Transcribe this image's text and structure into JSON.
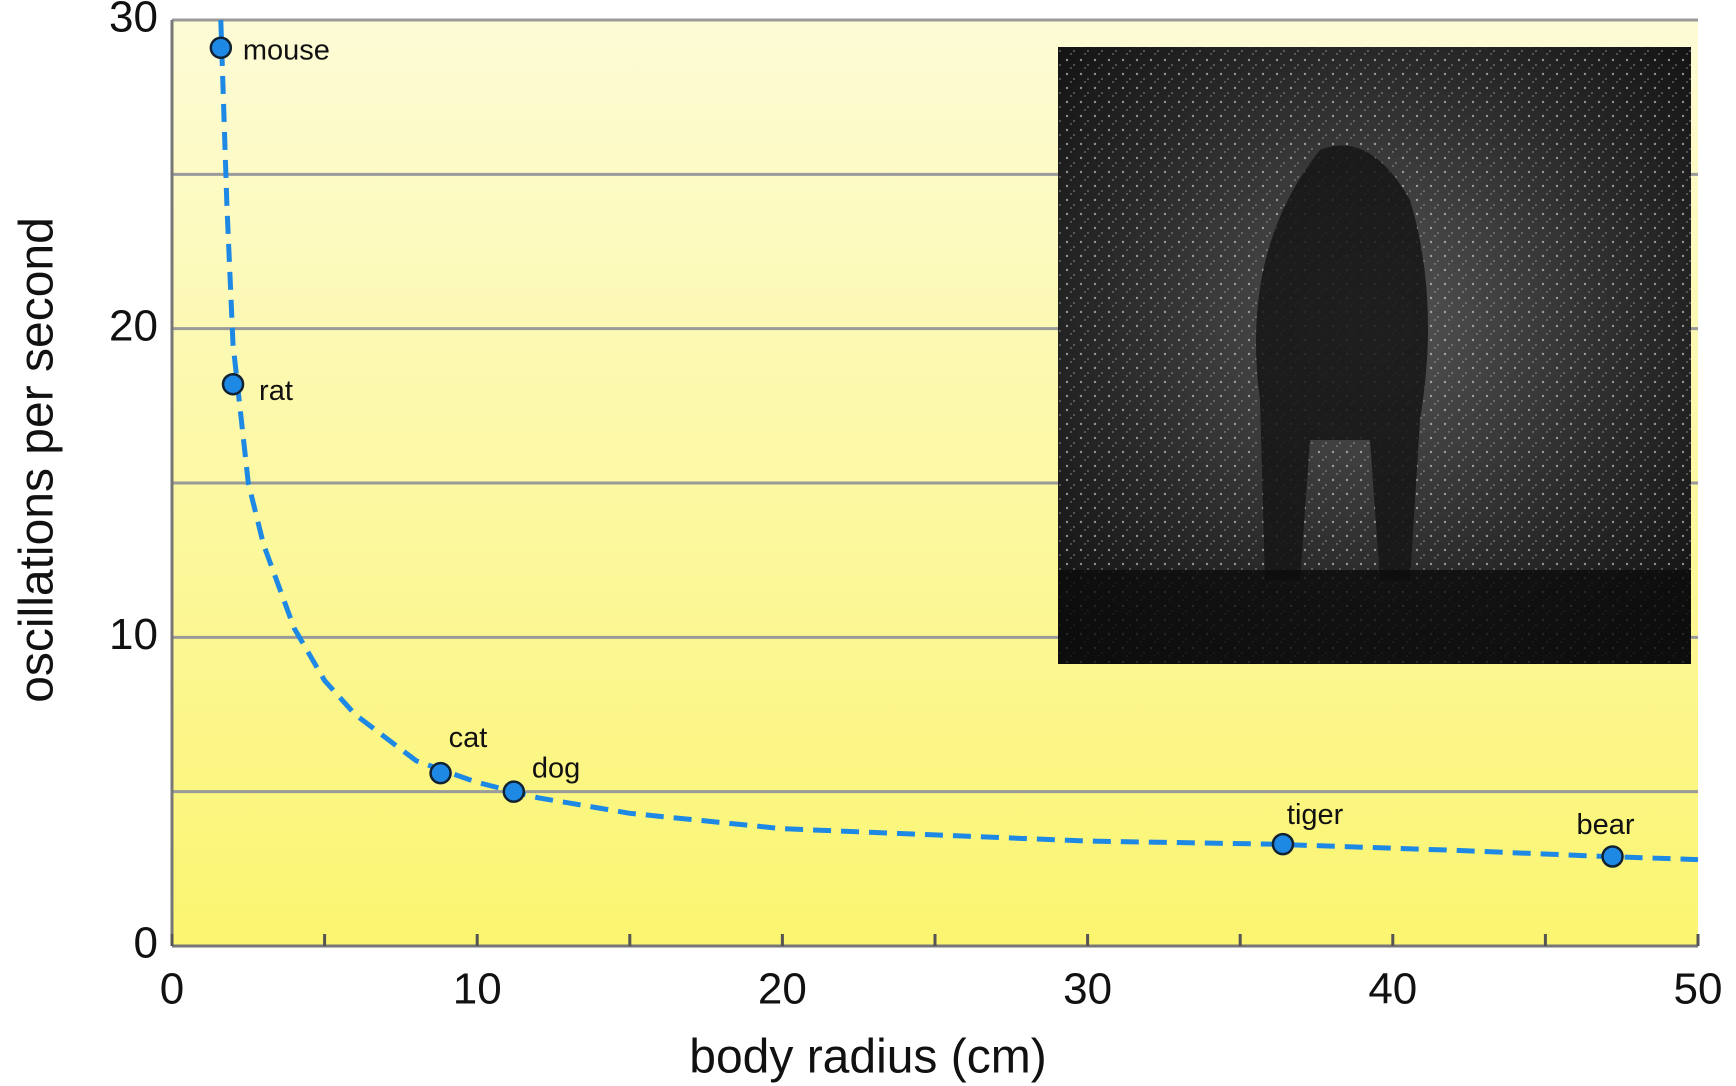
{
  "chart_data": {
    "type": "scatter",
    "x_label": "body radius (cm)",
    "y_label": "oscillations per second",
    "x": [
      1.6,
      2.0,
      8.8,
      11.2,
      36.4,
      47.2
    ],
    "values": [
      29.1,
      18.2,
      5.6,
      5.0,
      3.3,
      2.9
    ],
    "point_labels": [
      "mouse",
      "rat",
      "cat",
      "dog",
      "tiger",
      "bear"
    ],
    "color": "#1e88e5",
    "curve": {
      "x": [
        1.6,
        1.8,
        2.0,
        2.5,
        3,
        4,
        5,
        6,
        8,
        10,
        12,
        15,
        20,
        25,
        30,
        36,
        42,
        47,
        50
      ],
      "values": [
        30,
        24,
        19.5,
        15,
        13,
        10.3,
        8.6,
        7.5,
        6.0,
        5.3,
        4.8,
        4.3,
        3.8,
        3.6,
        3.4,
        3.3,
        3.1,
        2.9,
        2.8
      ],
      "color": "#1e88e5",
      "dashed": true
    },
    "xlim": [
      0,
      50
    ],
    "xticks": [
      0,
      10,
      20,
      30,
      40,
      50
    ],
    "xminor": [
      5,
      15,
      25,
      35,
      45
    ],
    "ylim": [
      0,
      30
    ],
    "yticks": [
      0,
      10,
      20,
      30
    ],
    "ygrid": [
      5,
      10,
      15,
      20,
      25,
      30
    ],
    "grid": true
  }
}
